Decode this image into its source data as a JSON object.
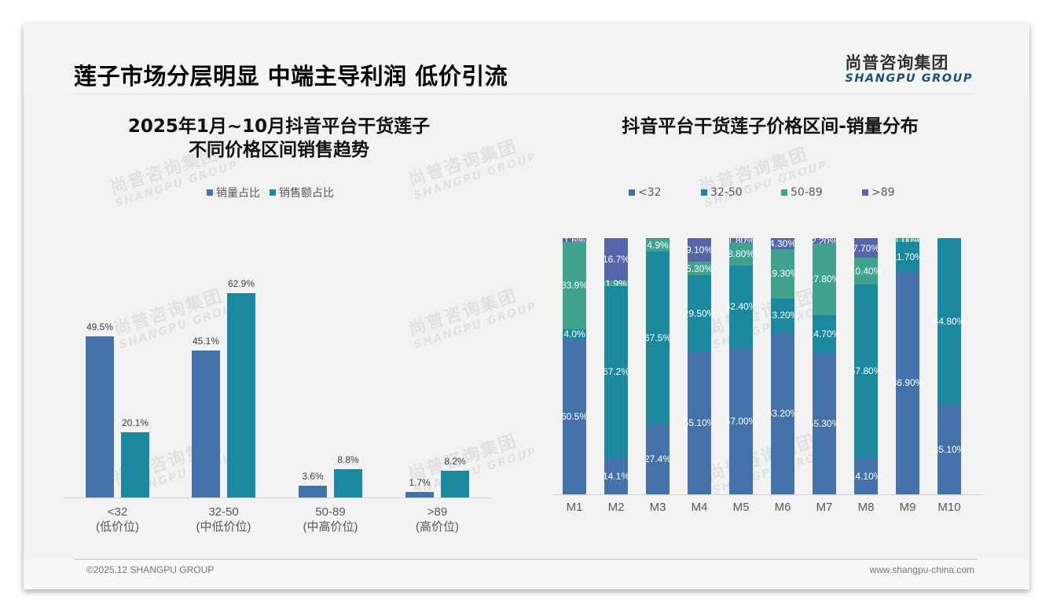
{
  "page": {
    "title": "莲子市场分层明显 中端主导利润 低价引流",
    "logo_cn": "尚普咨询集团",
    "logo_en": "SHANGPU GROUP",
    "footer_left": "©2025.12 SHANGPU GROUP",
    "footer_right": "www.shangpu-china.com",
    "watermark_cn": "尚普咨询集团",
    "watermark_en": "SHANGPU GROUP"
  },
  "colors": {
    "lt32": "#4472a8",
    "r32_50": "#1b88a0",
    "r50_89": "#3fa38e",
    "gt89": "#5465a8",
    "left_volume": "#4472a8",
    "left_revenue": "#1b88a0"
  },
  "chart_data": [
    {
      "type": "bar",
      "title": "2025年1月~10月抖音平台干货莲子\n不同价格区间销售趋势",
      "title_line1": "2025年1月~10月抖音平台干货莲子",
      "title_line2": "不同价格区间销售趋势",
      "categories": [
        "<32",
        "32-50",
        "50-89",
        ">89"
      ],
      "category_sublabels": [
        "(低价位)",
        "(中低价位)",
        "(中高价位)",
        "(高价位)"
      ],
      "series": [
        {
          "name": "销量占比",
          "values": [
            49.5,
            45.1,
            3.6,
            1.7
          ],
          "labels": [
            "49.5%",
            "45.1%",
            "3.6%",
            "1.7%"
          ]
        },
        {
          "name": "销售额占比",
          "values": [
            20.1,
            62.9,
            8.8,
            8.2
          ],
          "labels": [
            "20.1%",
            "62.9%",
            "8.8%",
            "8.2%"
          ]
        }
      ],
      "xlabel": "",
      "ylabel": "",
      "ylim": [
        0,
        70
      ],
      "grid": false,
      "legend_position": "top"
    },
    {
      "type": "bar",
      "stacked": true,
      "percent_stacked": true,
      "title": "抖音平台干货莲子价格区间-销量分布",
      "categories": [
        "M1",
        "M2",
        "M3",
        "M4",
        "M5",
        "M6",
        "M7",
        "M8",
        "M9",
        "M10"
      ],
      "series": [
        {
          "name": "<32",
          "values": [
            60.5,
            14.1,
            27.4,
            55.1,
            57.0,
            63.2,
            55.3,
            14.1,
            86.9,
            35.1
          ],
          "labels": [
            "60.5%",
            "14.1%",
            "27.4%",
            "55.10%",
            "57.00%",
            "63.20%",
            "55.30%",
            "14.10%",
            "86.90%",
            "35.10%"
          ]
        },
        {
          "name": "32-50",
          "values": [
            4.0,
            67.2,
            67.5,
            29.5,
            32.4,
            13.2,
            14.7,
            67.8,
            11.7,
            64.8
          ],
          "labels": [
            "4.0%",
            "67.2%",
            "67.5%",
            "29.50%",
            "32.40%",
            "13.20%",
            "14.70%",
            "67.80%",
            "11.70%",
            "64.80%"
          ]
        },
        {
          "name": "50-89",
          "values": [
            33.9,
            1.9,
            4.9,
            5.3,
            8.8,
            19.3,
            27.8,
            10.4,
            1.0,
            0.0
          ],
          "labels": [
            "33.9%",
            "1.9%",
            "4.9%",
            "5.30%",
            "8.80%",
            "19.30%",
            "27.80%",
            "10.40%",
            "1.00%",
            ""
          ]
        },
        {
          "name": ">89",
          "values": [
            1.6,
            16.7,
            0.2,
            9.1,
            1.8,
            4.3,
            2.2,
            7.7,
            0.4,
            0.1
          ],
          "labels": [
            "1.6%",
            "16.7%",
            "0.2%",
            "9.10%",
            "1.80%",
            "4.30%",
            "2.20%",
            "7.70%",
            "0.40%",
            "0.10%"
          ]
        }
      ],
      "xlabel": "",
      "ylabel": "",
      "ylim": [
        0,
        100
      ],
      "grid": false,
      "legend_position": "top"
    }
  ]
}
